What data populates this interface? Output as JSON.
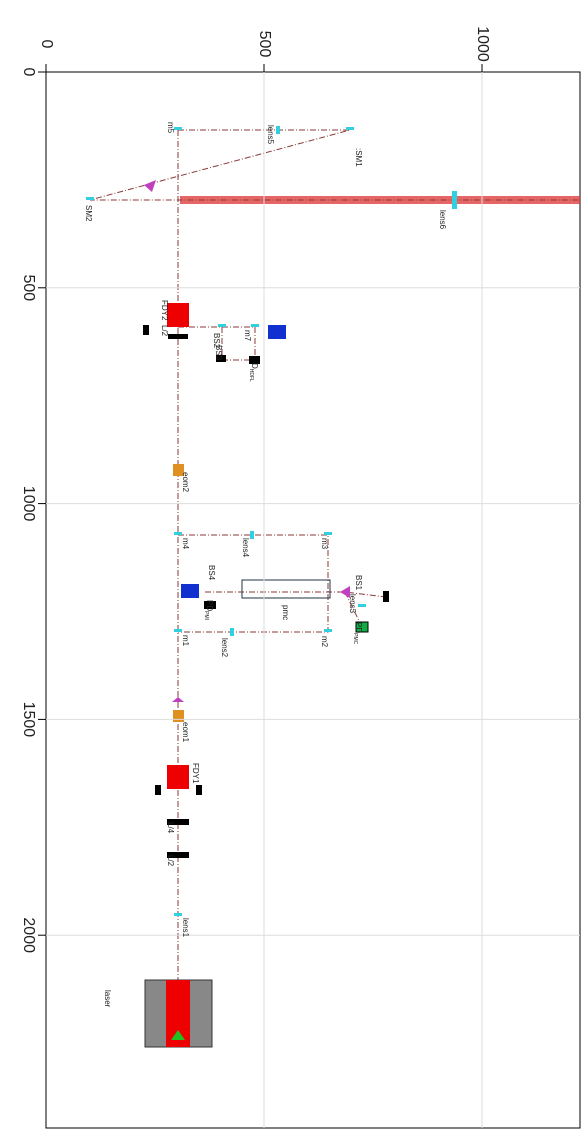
{
  "axes": {
    "x_ticks": [
      0,
      500,
      1000
    ],
    "y_ticks": [
      0,
      500,
      1000,
      1500,
      2000
    ]
  },
  "components": [
    {
      "label": "m5"
    },
    {
      "label": "lens5"
    },
    {
      "label": ":SM1"
    },
    {
      "label": "SM2"
    },
    {
      "label": "lens6"
    },
    {
      "label": "FDY2"
    },
    {
      "label": "L/2"
    },
    {
      "label": "BS2"
    },
    {
      "label": "BS3"
    },
    {
      "label": "m7"
    },
    {
      "label": "D",
      "sub": "HDFL"
    },
    {
      "label": "eom2"
    },
    {
      "label": "m4"
    },
    {
      "label": "lens4"
    },
    {
      "label": "m3"
    },
    {
      "label": "BS4"
    },
    {
      "label": "PD",
      "sub": "PMI"
    },
    {
      "label": "pmc"
    },
    {
      "label": "BS1"
    },
    {
      "label": "lens3"
    },
    {
      "label": "PD",
      "sub": "PMC"
    },
    {
      "label": "m2"
    },
    {
      "label": "lens2"
    },
    {
      "label": "m1"
    },
    {
      "label": "eom1"
    },
    {
      "label": "FDY1"
    },
    {
      "label": "L/4"
    },
    {
      "label": "L/2"
    },
    {
      "label": "lens1"
    },
    {
      "label": "laser"
    }
  ]
}
